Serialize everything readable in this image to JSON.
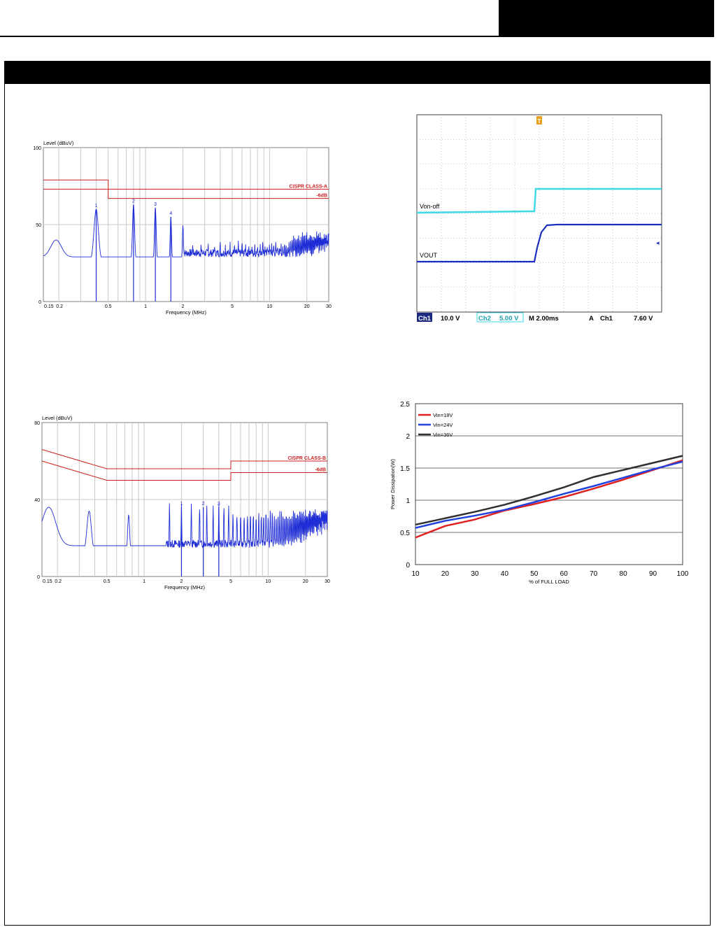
{
  "colors": {
    "trace": "#1f2dd6",
    "limit": "#cc1f1f",
    "scope_bg": "#ffffff",
    "scope_grid": "#9aa0a8",
    "scope_cyan": "#3ed8e6",
    "scope_blue": "#1a2fc0",
    "red": "#e02020",
    "blue": "#2040e0",
    "black": "#303030"
  },
  "chart_data": [
    {
      "type": "line",
      "ylabel": "Level (dBuV)",
      "xlabel": "Frequency (MHz)",
      "xscale": "log",
      "xlim": [
        0.15,
        30
      ],
      "ylim": [
        0,
        100
      ],
      "x_tick_labels": [
        "0.15",
        "0.2",
        "0.5",
        "1",
        "2",
        "5",
        "10",
        "20",
        "30"
      ],
      "x_ticks": [
        0.15,
        0.2,
        0.5,
        1,
        2,
        5,
        10,
        20,
        30
      ],
      "y_tick_labels": [
        "0",
        "50",
        "100"
      ],
      "y_ticks": [
        0,
        50,
        100
      ],
      "limit_labels": [
        "CISPR CLASS-A",
        "-6dB"
      ],
      "limits": [
        {
          "x": [
            0.15,
            0.5,
            0.5,
            30
          ],
          "y": [
            79,
            79,
            73,
            73
          ]
        },
        {
          "x": [
            0.15,
            0.5,
            0.5,
            30
          ],
          "y": [
            73,
            73,
            67,
            67
          ]
        }
      ],
      "markers": [
        {
          "label": "1",
          "x": 0.4,
          "y": 60
        },
        {
          "label": "2",
          "x": 0.8,
          "y": 63
        },
        {
          "label": "3",
          "x": 1.2,
          "y": 61
        },
        {
          "label": "4",
          "x": 1.6,
          "y": 55
        }
      ]
    },
    {
      "type": "line",
      "ylabel": "Level (dBuV)",
      "xlabel": "Frequency (MHz)",
      "xscale": "log",
      "xlim": [
        0.15,
        30
      ],
      "ylim": [
        0,
        80
      ],
      "x_tick_labels": [
        "0.15",
        "0.2",
        "0.5",
        "1",
        "2",
        "5",
        "10",
        "20",
        "30"
      ],
      "x_ticks": [
        0.15,
        0.2,
        0.5,
        1,
        2,
        5,
        10,
        20,
        30
      ],
      "y_tick_labels": [
        "0",
        "40",
        "80"
      ],
      "y_ticks": [
        0,
        40,
        80
      ],
      "limit_labels": [
        "CISPR CLASS-B",
        "-6dB"
      ],
      "limits": [
        {
          "x": [
            0.15,
            0.5,
            5,
            5,
            30
          ],
          "y": [
            66,
            56,
            56,
            60,
            60
          ]
        },
        {
          "x": [
            0.15,
            0.5,
            5,
            5,
            30
          ],
          "y": [
            60,
            50,
            50,
            54,
            54
          ]
        }
      ],
      "markers": [
        {
          "label": "1",
          "x": 2,
          "y": 36
        },
        {
          "label": "2",
          "x": 3,
          "y": 36
        },
        {
          "label": "3",
          "x": 4,
          "y": 36
        }
      ]
    },
    {
      "type": "line",
      "series": [
        {
          "name": "Von-off",
          "color": "#3ed8e6"
        },
        {
          "name": "VOUT",
          "color": "#1a2fc0"
        }
      ],
      "status_bar": [
        "Ch1",
        "10.0 V",
        "Ch2",
        "5.00 V",
        "M 2.00ms",
        "A",
        "Ch1",
        "7.60 V"
      ],
      "trigger_label": "T"
    },
    {
      "type": "line",
      "xlabel": "% of FULL LOAD",
      "ylabel": "Power Dissipation(W)",
      "x": [
        10,
        20,
        30,
        40,
        50,
        60,
        70,
        80,
        90,
        100
      ],
      "xlim": [
        10,
        100
      ],
      "ylim": [
        0,
        2.5
      ],
      "x_tick_labels": [
        "10",
        "20",
        "30",
        "40",
        "50",
        "60",
        "70",
        "80",
        "90",
        "100"
      ],
      "y_tick_labels": [
        "0",
        "0.5",
        "1",
        "1.5",
        "2",
        "2.5"
      ],
      "y_ticks": [
        0,
        0.5,
        1,
        1.5,
        2,
        2.5
      ],
      "grid": true,
      "legend_position": "top-left",
      "series": [
        {
          "name": "Vin=18V",
          "color": "#e02020",
          "values": [
            0.42,
            0.6,
            0.7,
            0.84,
            0.94,
            1.05,
            1.18,
            1.32,
            1.47,
            1.62
          ]
        },
        {
          "name": "Vin=24V",
          "color": "#2040e0",
          "values": [
            0.57,
            0.68,
            0.76,
            0.85,
            0.97,
            1.1,
            1.22,
            1.35,
            1.48,
            1.6
          ]
        },
        {
          "name": "Vin=36V",
          "color": "#303030",
          "values": [
            0.62,
            0.72,
            0.82,
            0.93,
            1.06,
            1.2,
            1.36,
            1.47,
            1.58,
            1.69
          ]
        }
      ]
    }
  ]
}
